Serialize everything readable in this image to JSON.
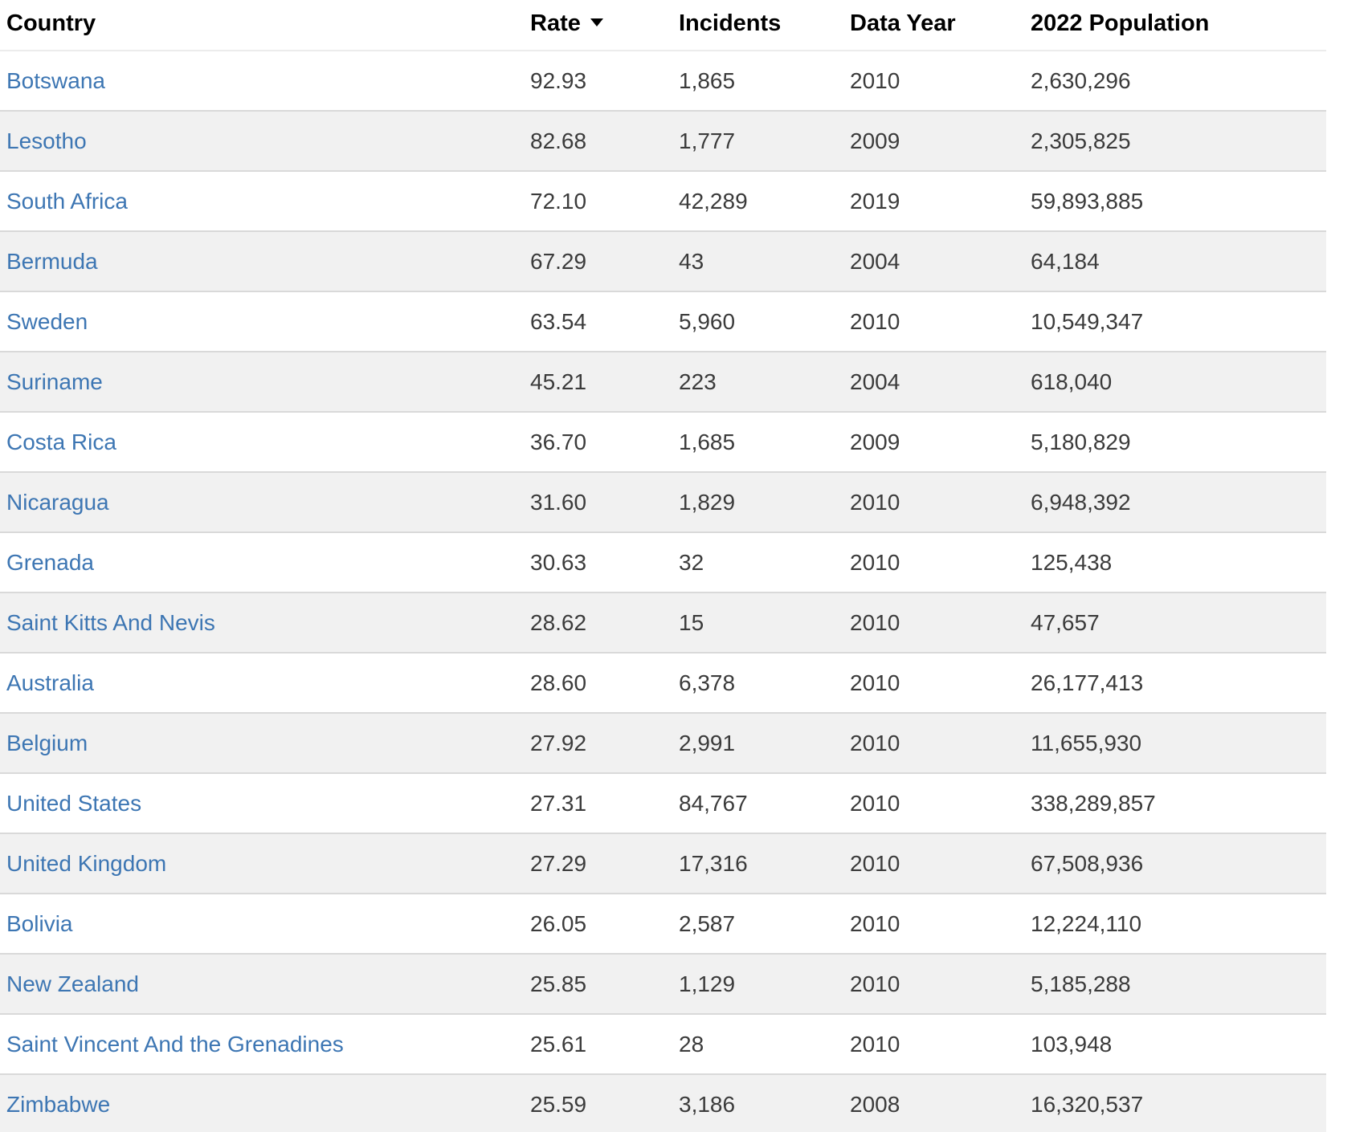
{
  "table": {
    "sort": {
      "column": "Rate",
      "direction": "desc"
    },
    "colors": {
      "link_blue": "#3d76b3",
      "row_stripe": "#f1f1f1",
      "row_border": "#d9d9d9",
      "header_border": "#ececec",
      "header_text": "#000000",
      "cell_text": "#3b3b3b",
      "background": "#ffffff"
    },
    "columns": [
      {
        "key": "country",
        "label": "Country"
      },
      {
        "key": "rate",
        "label": "Rate",
        "sort_icon": "caret-down"
      },
      {
        "key": "incidents",
        "label": "Incidents"
      },
      {
        "key": "data_year",
        "label": "Data Year"
      },
      {
        "key": "population_2022",
        "label": "2022 Population"
      }
    ],
    "rows": [
      [
        "Botswana",
        "92.93",
        "1,865",
        "2010",
        "2,630,296"
      ],
      [
        "Lesotho",
        "82.68",
        "1,777",
        "2009",
        "2,305,825"
      ],
      [
        "South Africa",
        "72.10",
        "42,289",
        "2019",
        "59,893,885"
      ],
      [
        "Bermuda",
        "67.29",
        "43",
        "2004",
        "64,184"
      ],
      [
        "Sweden",
        "63.54",
        "5,960",
        "2010",
        "10,549,347"
      ],
      [
        "Suriname",
        "45.21",
        "223",
        "2004",
        "618,040"
      ],
      [
        "Costa Rica",
        "36.70",
        "1,685",
        "2009",
        "5,180,829"
      ],
      [
        "Nicaragua",
        "31.60",
        "1,829",
        "2010",
        "6,948,392"
      ],
      [
        "Grenada",
        "30.63",
        "32",
        "2010",
        "125,438"
      ],
      [
        "Saint Kitts And Nevis",
        "28.62",
        "15",
        "2010",
        "47,657"
      ],
      [
        "Australia",
        "28.60",
        "6,378",
        "2010",
        "26,177,413"
      ],
      [
        "Belgium",
        "27.92",
        "2,991",
        "2010",
        "11,655,930"
      ],
      [
        "United States",
        "27.31",
        "84,767",
        "2010",
        "338,289,857"
      ],
      [
        "United Kingdom",
        "27.29",
        "17,316",
        "2010",
        "67,508,936"
      ],
      [
        "Bolivia",
        "26.05",
        "2,587",
        "2010",
        "12,224,110"
      ],
      [
        "New Zealand",
        "25.85",
        "1,129",
        "2010",
        "5,185,288"
      ],
      [
        "Saint Vincent And the Grenadines",
        "25.61",
        "28",
        "2010",
        "103,948"
      ],
      [
        "Zimbabwe",
        "25.59",
        "3,186",
        "2008",
        "16,320,537"
      ]
    ]
  }
}
